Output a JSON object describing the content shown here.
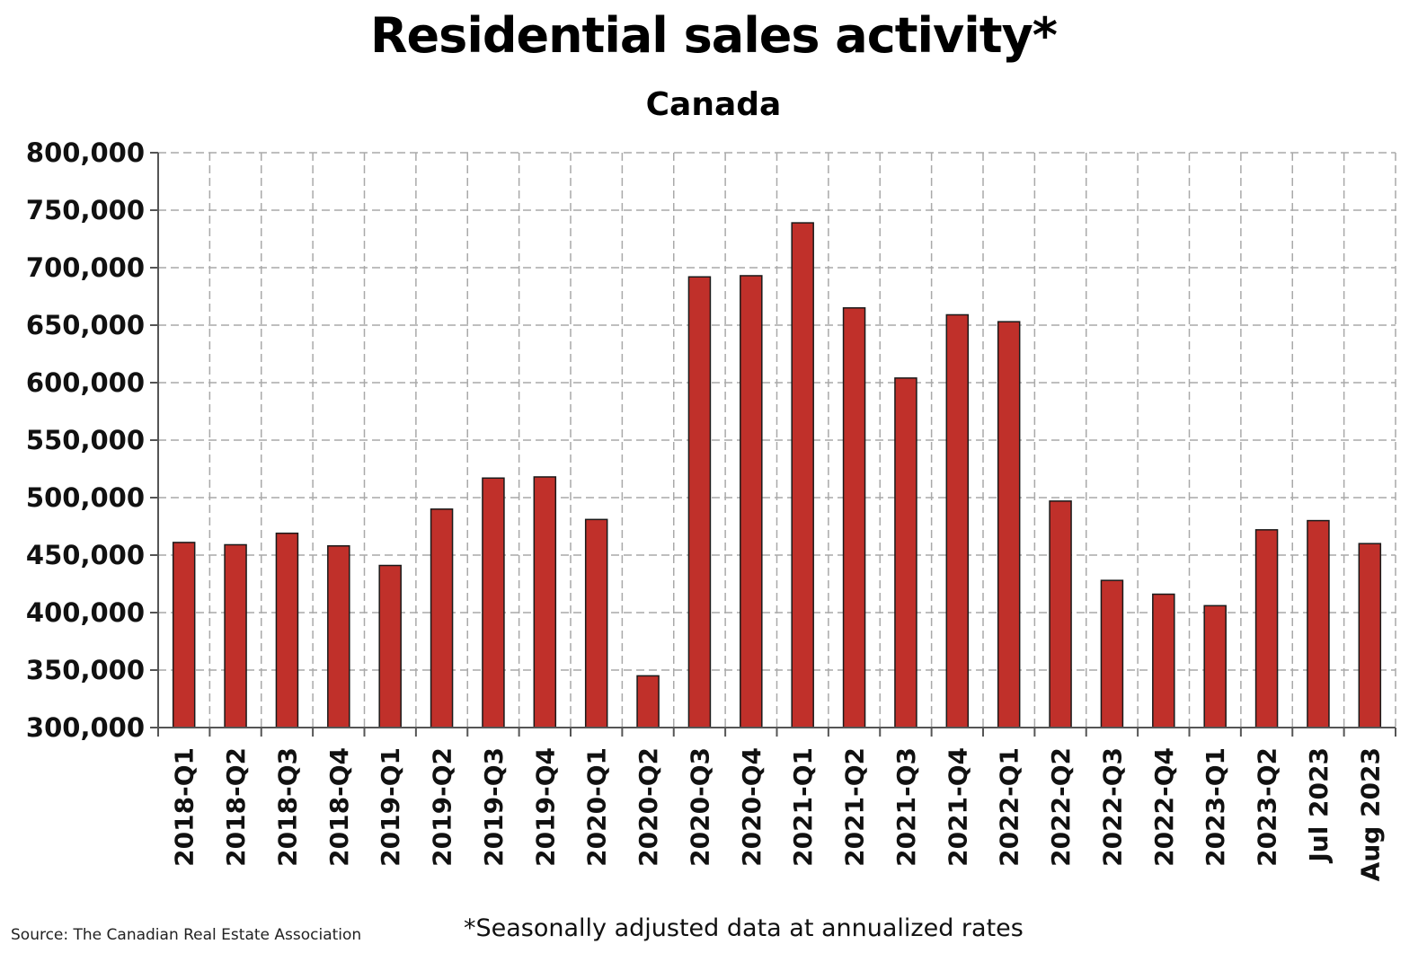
{
  "chart_data": {
    "type": "bar",
    "title": "Residential sales activity*",
    "subtitle": "Canada",
    "source": "Source: The Canadian Real Estate Association",
    "footnote": "*Seasonally adjusted data at annualized rates",
    "categories": [
      "2018-Q1",
      "2018-Q2",
      "2018-Q3",
      "2018-Q4",
      "2019-Q1",
      "2019-Q2",
      "2019-Q3",
      "2019-Q4",
      "2020-Q1",
      "2020-Q2",
      "2020-Q3",
      "2020-Q4",
      "2021-Q1",
      "2021-Q2",
      "2021-Q3",
      "2021-Q4",
      "2022-Q1",
      "2022-Q2",
      "2022-Q3",
      "2022-Q4",
      "2023-Q1",
      "2023-Q2",
      "Jul 2023",
      "Aug 2023"
    ],
    "values": [
      461000,
      459000,
      469000,
      458000,
      441000,
      490000,
      517000,
      518000,
      481000,
      345000,
      692000,
      693000,
      739000,
      665000,
      604000,
      659000,
      653000,
      497000,
      428000,
      416000,
      406000,
      472000,
      480000,
      460000
    ],
    "ylim": [
      300000,
      800000
    ],
    "yticks": [
      300000,
      350000,
      400000,
      450000,
      500000,
      550000,
      600000,
      650000,
      700000,
      750000,
      800000
    ],
    "ytick_labels": [
      "300,000",
      "350,000",
      "400,000",
      "450,000",
      "500,000",
      "550,000",
      "600,000",
      "650,000",
      "700,000",
      "750,000",
      "800,000"
    ],
    "xlabel": "",
    "ylabel": "",
    "grid": true,
    "bar_color": "#c0302a",
    "bar_border_color": "#1a1a1a",
    "grid_color": "#a9a9a9"
  }
}
